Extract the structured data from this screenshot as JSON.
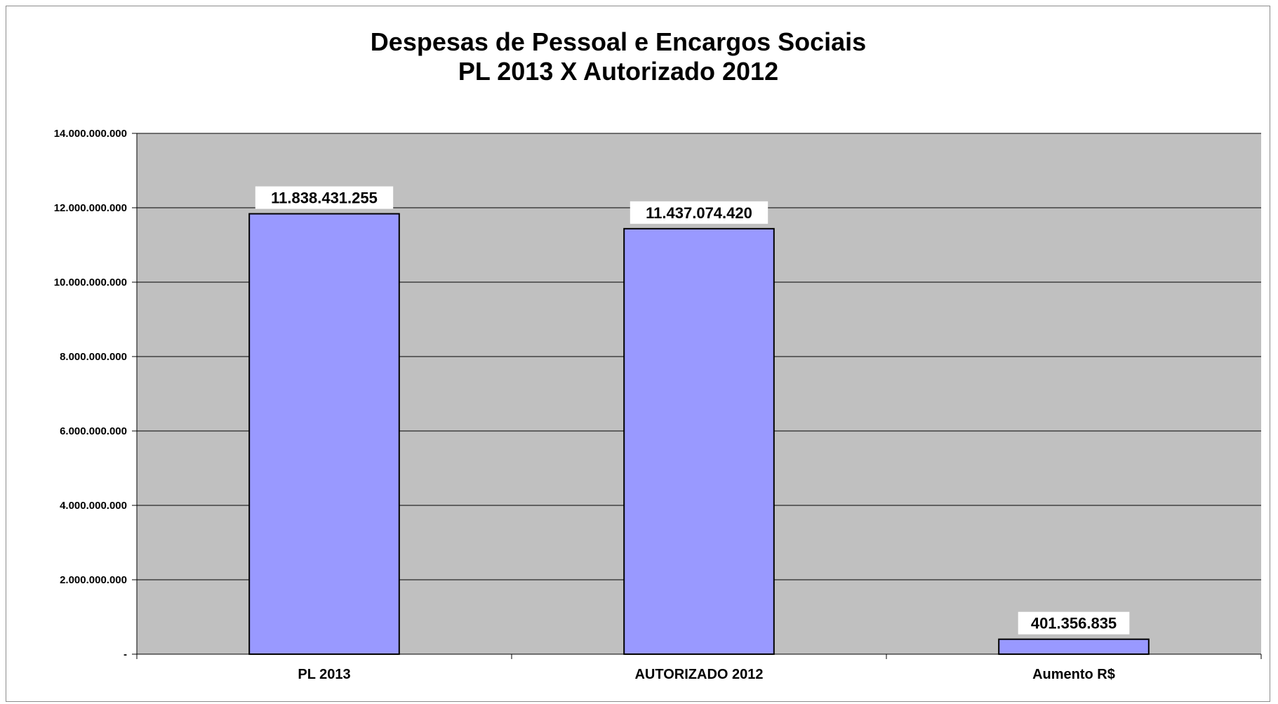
{
  "chart_data": {
    "type": "bar",
    "title_lines": [
      "Despesas de Pessoal e Encargos Sociais",
      "PL 2013 X Autorizado 2012"
    ],
    "categories": [
      "PL 2013",
      "AUTORIZADO 2012",
      "Aumento R$"
    ],
    "values": [
      11838431255,
      11437074420,
      401356835
    ],
    "data_labels": [
      "11.838.431.255",
      "11.437.074.420",
      "401.356.835"
    ],
    "ylim": [
      0,
      14000000000
    ],
    "yticks": [
      0,
      2000000000,
      4000000000,
      6000000000,
      8000000000,
      10000000000,
      12000000000,
      14000000000
    ],
    "ytick_labels": [
      "-",
      "2.000.000.000",
      "4.000.000.000",
      "6.000.000.000",
      "8.000.000.000",
      "10.000.000.000",
      "12.000.000.000",
      "14.000.000.000"
    ],
    "grid": true,
    "legend": "none",
    "colors": {
      "bar_fill": "#9999ff",
      "bar_stroke": "#000000",
      "plot_bg": "#c0c0c0",
      "label_bg": "#ffffff",
      "gridline": "#000000"
    }
  }
}
